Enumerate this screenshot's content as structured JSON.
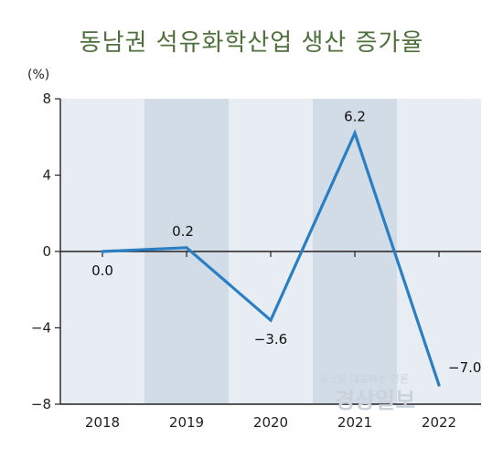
{
  "chart_data": {
    "type": "line",
    "title": "동남권 석유화학산업 생산 증가율",
    "unit_label": "(%)",
    "categories": [
      "2018",
      "2019",
      "2020",
      "2021",
      "2022"
    ],
    "series": [
      {
        "values": [
          0.0,
          0.2,
          -3.6,
          6.2,
          -7.0
        ]
      }
    ],
    "data_labels": [
      "0.0",
      "0.2",
      "−3.6",
      "6.2",
      "−7.0"
    ],
    "y_ticks": [
      "8",
      "4",
      "0",
      "−4",
      "−8"
    ],
    "ylim": [
      -8,
      8
    ],
    "grid": false,
    "colors": {
      "line": "#2a7fc4",
      "band_light": "#e8edf3",
      "band_dark": "#d1dce6",
      "title": "#4f6f3c"
    }
  },
  "watermark": {
    "slogan": "울산을 대표하는 언론",
    "name": "경상일보"
  }
}
